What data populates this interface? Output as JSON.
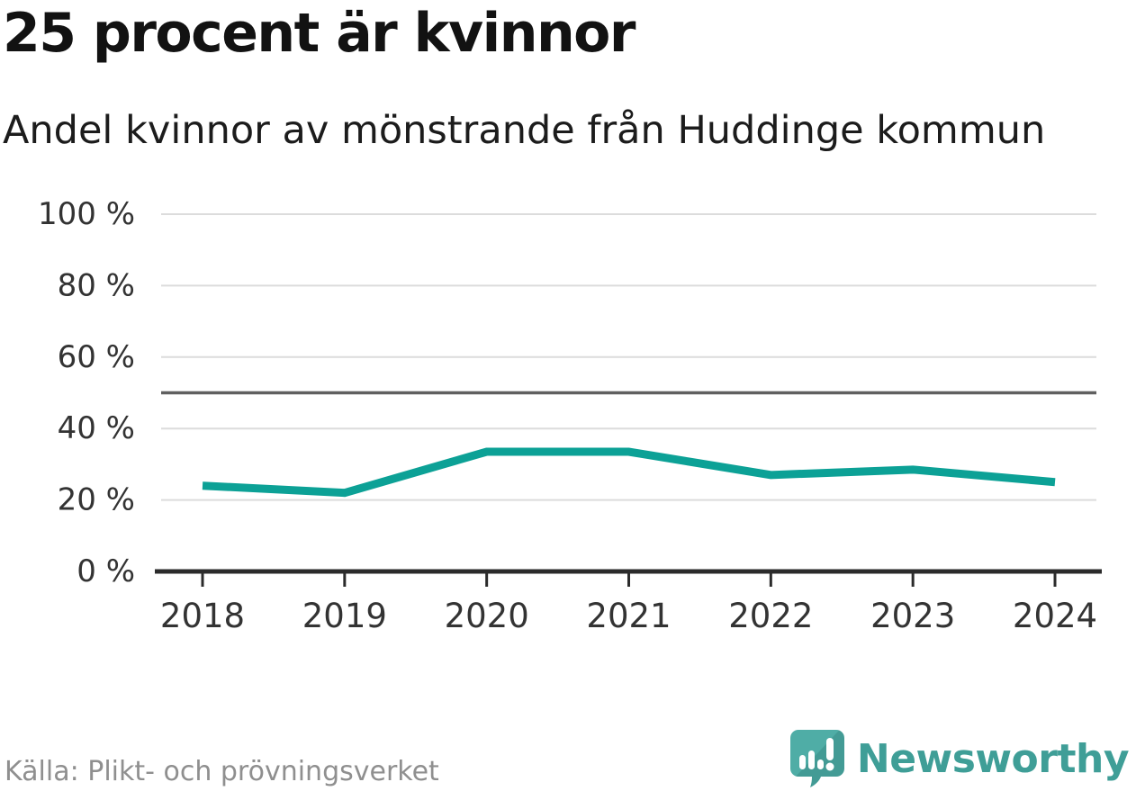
{
  "header": {
    "title": "25 procent är kvinnor",
    "subtitle": "Andel kvinnor av mönstrande från Huddinge kommun"
  },
  "chart_data": {
    "type": "line",
    "title": "25 procent är kvinnor",
    "subtitle": "Andel kvinnor av mönstrande från Huddinge kommun",
    "x": [
      "2018",
      "2019",
      "2020",
      "2021",
      "2022",
      "2023",
      "2024"
    ],
    "series": [
      {
        "name": "Andel kvinnor av mönstrande",
        "color": "#0ca196",
        "values": [
          24,
          22,
          33.5,
          33.5,
          27,
          28.5,
          25
        ]
      }
    ],
    "ylim": [
      0,
      100
    ],
    "unit": "%",
    "yticks": [
      {
        "value": 0,
        "label": "0 %"
      },
      {
        "value": 20,
        "label": "20 %"
      },
      {
        "value": 40,
        "label": "40 %"
      },
      {
        "value": 60,
        "label": "60 %"
      },
      {
        "value": 80,
        "label": "80 %"
      },
      {
        "value": 100,
        "label": "100 %"
      }
    ],
    "reference_line": {
      "value": 50,
      "color": "#606060"
    },
    "grid": true,
    "grid_color": "#dcdcdc",
    "axis_color": "#2b2b2b",
    "tick_label_color": "#333333",
    "legend_position": "none"
  },
  "footer": {
    "source": "Källa: Plikt- och prövningsverket",
    "brand": {
      "name": "Newsworthy",
      "logo_icon": "chart-bubble-icon",
      "text_color": "#3f9e97",
      "icon_color": "#4aa7a0"
    }
  }
}
